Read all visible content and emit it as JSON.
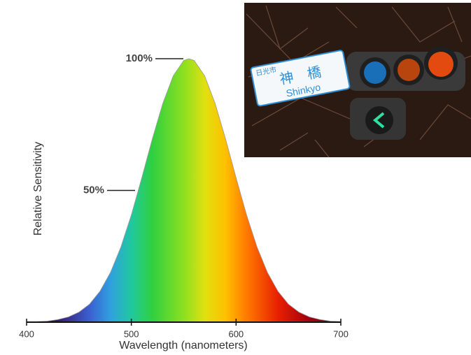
{
  "chart_data": {
    "type": "area",
    "x": [
      400,
      410,
      420,
      430,
      440,
      450,
      460,
      470,
      480,
      490,
      500,
      510,
      520,
      530,
      540,
      550,
      555,
      560,
      570,
      580,
      590,
      600,
      610,
      620,
      630,
      640,
      650,
      660,
      670,
      680,
      690,
      700
    ],
    "values": [
      0.1,
      0.2,
      0.4,
      1.0,
      2.0,
      3.8,
      6.8,
      11.7,
      18.8,
      28.5,
      40.7,
      54.8,
      69.5,
      83.0,
      93.5,
      99.3,
      100,
      99.3,
      93.5,
      83.0,
      69.5,
      54.8,
      40.7,
      28.5,
      18.8,
      11.7,
      6.8,
      3.8,
      2.0,
      1.0,
      0.4,
      0.2
    ],
    "xlim": [
      400,
      700
    ],
    "xticks": [
      400,
      500,
      600,
      700
    ],
    "ylim": [
      0,
      100
    ],
    "yticks": [
      {
        "value": 50,
        "label": "50%"
      },
      {
        "value": 100,
        "label": "100%"
      }
    ],
    "x_label": "Wavelength (nanometers)",
    "y_label": "Relative Sensitivity"
  },
  "photo": {
    "sign": {
      "city": "日光市",
      "name": "神　橋",
      "romaji": "Shinkyo"
    }
  }
}
